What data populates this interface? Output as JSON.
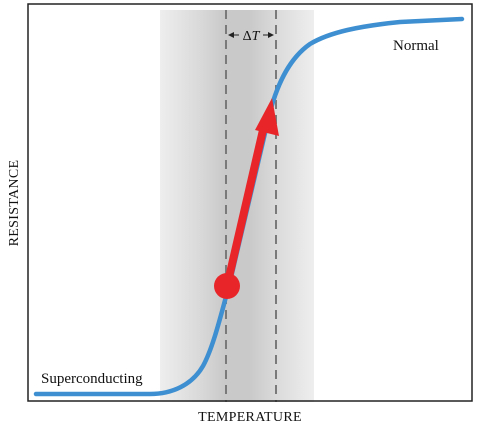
{
  "labels": {
    "xlabel": "TEMPERATURE",
    "ylabel": "RESISTANCE",
    "normal": "Normal",
    "superconducting": "Superconducting",
    "delta_symbol": "Δ",
    "delta_var": "T"
  },
  "colors": {
    "curve": "#3d8fd1",
    "arrow": "#e8262a",
    "frame": "#222222",
    "band_outer": "#e3e3e3",
    "band_inner": "#c6c6c6",
    "dashes": "#777777"
  },
  "icons": {
    "start_marker": "filled-circle",
    "arrow_head": "triangle"
  }
}
